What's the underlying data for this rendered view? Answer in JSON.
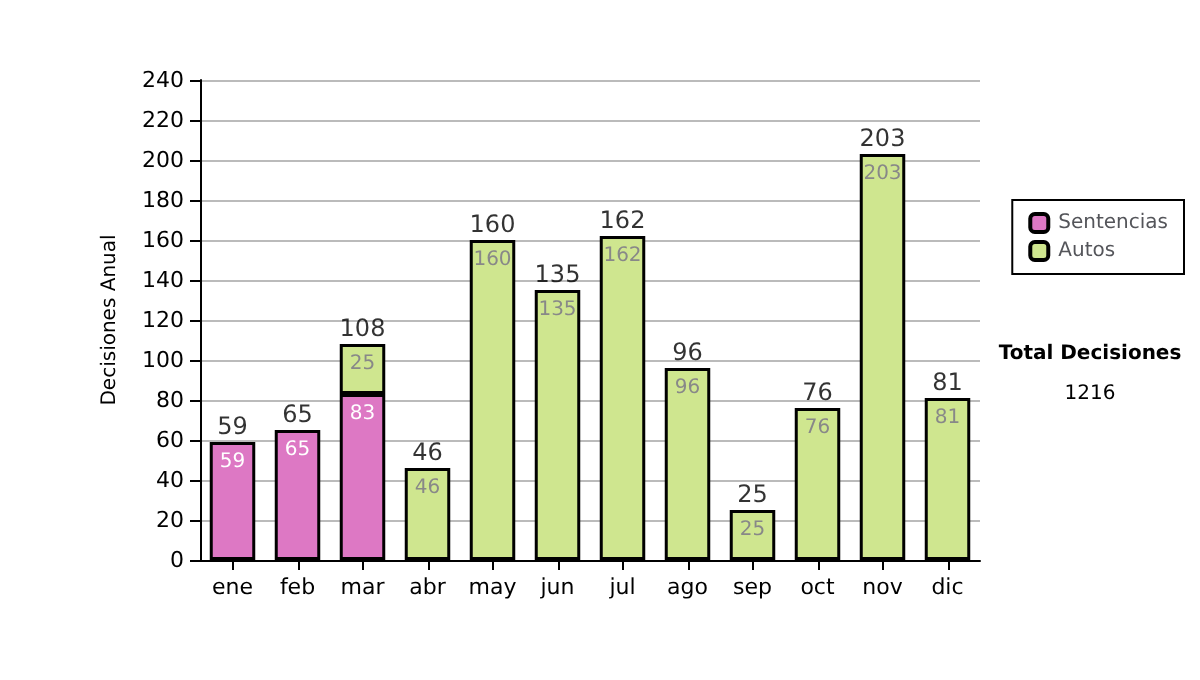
{
  "chart_data": {
    "type": "bar",
    "ylabel": "Decisiones Anual",
    "stacked": true,
    "categories": [
      "ene",
      "feb",
      "mar",
      "abr",
      "may",
      "jun",
      "jul",
      "ago",
      "sep",
      "oct",
      "nov",
      "dic"
    ],
    "series": [
      {
        "name": "Sentencias",
        "color": "#dd78c4",
        "values": [
          59,
          65,
          83,
          null,
          null,
          null,
          null,
          null,
          null,
          null,
          null,
          null
        ]
      },
      {
        "name": "Autos",
        "color": "#cfe68f",
        "values": [
          null,
          null,
          25,
          46,
          160,
          135,
          162,
          96,
          25,
          76,
          203,
          81
        ]
      }
    ],
    "data_labels": true,
    "totals": [
      "59",
      "65",
      "108",
      "46",
      "160",
      "135",
      "162",
      "96",
      "25",
      "76",
      "203",
      "81"
    ],
    "ylim": [
      0,
      240
    ],
    "yticks": [
      0,
      20,
      40,
      60,
      80,
      100,
      120,
      140,
      160,
      180,
      200,
      220,
      240
    ],
    "grid": "y",
    "legend": "right",
    "annotations": [
      "Total Decisiones",
      "1216"
    ]
  }
}
